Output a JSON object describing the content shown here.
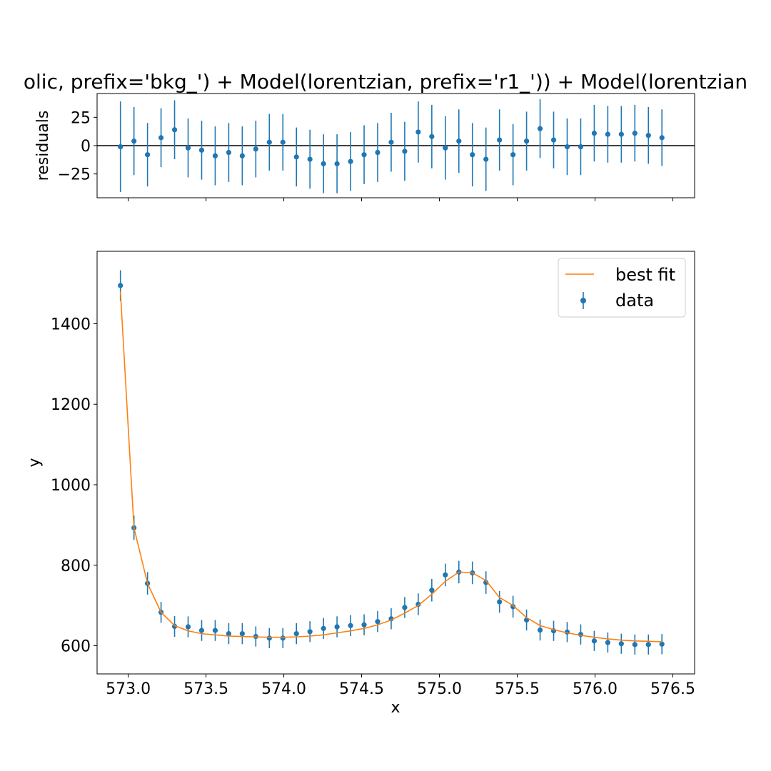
{
  "colors": {
    "data": "#1f77b4",
    "fit": "#ff7f0e",
    "axes": "#000000",
    "background": "#ffffff"
  },
  "chart_data": [
    {
      "type": "scatter",
      "panel": "residuals",
      "title": "olic, prefix='bkg_') + Model(lorentzian, prefix='r1_')) + Model(lorentzian",
      "xlabel": "",
      "ylabel": "residuals",
      "xlim": [
        572.8,
        576.64
      ],
      "ylim": [
        -46,
        46
      ],
      "yticks": [
        25,
        0,
        -25
      ],
      "ytick_labels": [
        "25",
        "0",
        "−25"
      ],
      "zero_line": true,
      "grid": false,
      "series": [
        {
          "x": [
            572.95,
            573.037,
            573.124,
            573.211,
            573.298,
            573.385,
            573.472,
            573.559,
            573.646,
            573.733,
            573.82,
            573.907,
            573.994,
            574.081,
            574.168,
            574.255,
            574.342,
            574.429,
            574.516,
            574.603,
            574.69,
            574.777,
            574.864,
            574.951,
            575.038,
            575.125,
            575.212,
            575.299,
            575.386,
            575.473,
            575.56,
            575.647,
            575.734,
            575.821,
            575.908,
            575.995,
            576.082,
            576.169,
            576.256,
            576.343,
            576.43
          ],
          "y": [
            -1,
            4,
            -8,
            7,
            14,
            -2,
            -4,
            -9,
            -6,
            -9,
            -3,
            3,
            3,
            -10,
            -12,
            -16,
            -16,
            -14,
            -8,
            -6,
            3,
            -5,
            12,
            8,
            -2,
            4,
            -8,
            -12,
            5,
            -8,
            4,
            15,
            5,
            -1,
            -1,
            11,
            10,
            10,
            11,
            9,
            7
          ],
          "yerr": [
            40,
            30,
            28,
            26,
            26,
            26,
            26,
            26,
            26,
            26,
            25,
            25,
            25,
            26,
            26,
            26,
            26,
            26,
            26,
            26,
            26,
            26,
            27,
            28,
            28,
            28,
            28,
            28,
            27,
            27,
            26,
            26,
            25,
            25,
            25,
            25,
            25,
            25,
            25,
            25,
            25
          ]
        }
      ]
    },
    {
      "type": "scatter",
      "panel": "main",
      "xlabel": "x",
      "ylabel": "y",
      "xlim": [
        572.8,
        576.64
      ],
      "ylim": [
        530,
        1580
      ],
      "xticks": [
        573.0,
        573.5,
        574.0,
        574.5,
        575.0,
        575.5,
        576.0,
        576.5
      ],
      "xtick_labels": [
        "573.0",
        "573.5",
        "574.0",
        "574.5",
        "575.0",
        "575.5",
        "576.0",
        "576.5"
      ],
      "yticks": [
        600,
        800,
        1000,
        1200,
        1400
      ],
      "ytick_labels": [
        "600",
        "800",
        "1000",
        "1200",
        "1400"
      ],
      "legend_position": "top-right",
      "grid": false,
      "series": [
        {
          "name": "data",
          "kind": "errorbar",
          "x": [
            572.95,
            573.037,
            573.124,
            573.211,
            573.298,
            573.385,
            573.472,
            573.559,
            573.646,
            573.733,
            573.82,
            573.907,
            573.994,
            574.081,
            574.168,
            574.255,
            574.342,
            574.429,
            574.516,
            574.603,
            574.69,
            574.777,
            574.864,
            574.951,
            575.038,
            575.125,
            575.212,
            575.299,
            575.386,
            575.473,
            575.56,
            575.647,
            575.734,
            575.821,
            575.908,
            575.995,
            576.082,
            576.169,
            576.256,
            576.343,
            576.43
          ],
          "y": [
            1495,
            893,
            755,
            683,
            648,
            647,
            638,
            638,
            630,
            630,
            623,
            619,
            619,
            630,
            635,
            643,
            647,
            650,
            652,
            660,
            667,
            695,
            703,
            738,
            776,
            783,
            781,
            757,
            709,
            697,
            664,
            639,
            637,
            634,
            628,
            612,
            608,
            605,
            603,
            603,
            604
          ],
          "yerr": [
            38,
            30,
            28,
            26,
            26,
            26,
            26,
            26,
            26,
            26,
            25,
            25,
            25,
            26,
            26,
            26,
            26,
            26,
            26,
            26,
            26,
            26,
            27,
            28,
            28,
            28,
            28,
            28,
            27,
            27,
            26,
            26,
            25,
            25,
            25,
            25,
            25,
            25,
            25,
            25,
            25
          ]
        },
        {
          "name": "best fit",
          "kind": "line",
          "x": [
            572.95,
            573.037,
            573.124,
            573.211,
            573.298,
            573.385,
            573.472,
            573.559,
            573.646,
            573.733,
            573.82,
            573.907,
            573.994,
            574.081,
            574.168,
            574.255,
            574.342,
            574.429,
            574.516,
            574.603,
            574.69,
            574.777,
            574.864,
            574.951,
            575.038,
            575.125,
            575.212,
            575.299,
            575.386,
            575.473,
            575.56,
            575.647,
            575.734,
            575.821,
            575.908,
            575.995,
            576.082,
            576.169,
            576.256,
            576.343,
            576.43
          ],
          "y": [
            1480,
            893,
            755,
            683,
            650,
            637,
            630,
            627,
            624,
            623,
            622,
            621,
            621,
            622,
            624,
            627,
            632,
            637,
            643,
            652,
            664,
            681,
            700,
            728,
            760,
            783,
            781,
            762,
            720,
            700,
            670,
            650,
            640,
            632,
            626,
            621,
            617,
            614,
            612,
            611,
            610
          ]
        }
      ],
      "legend": [
        "best fit",
        "data"
      ]
    }
  ]
}
